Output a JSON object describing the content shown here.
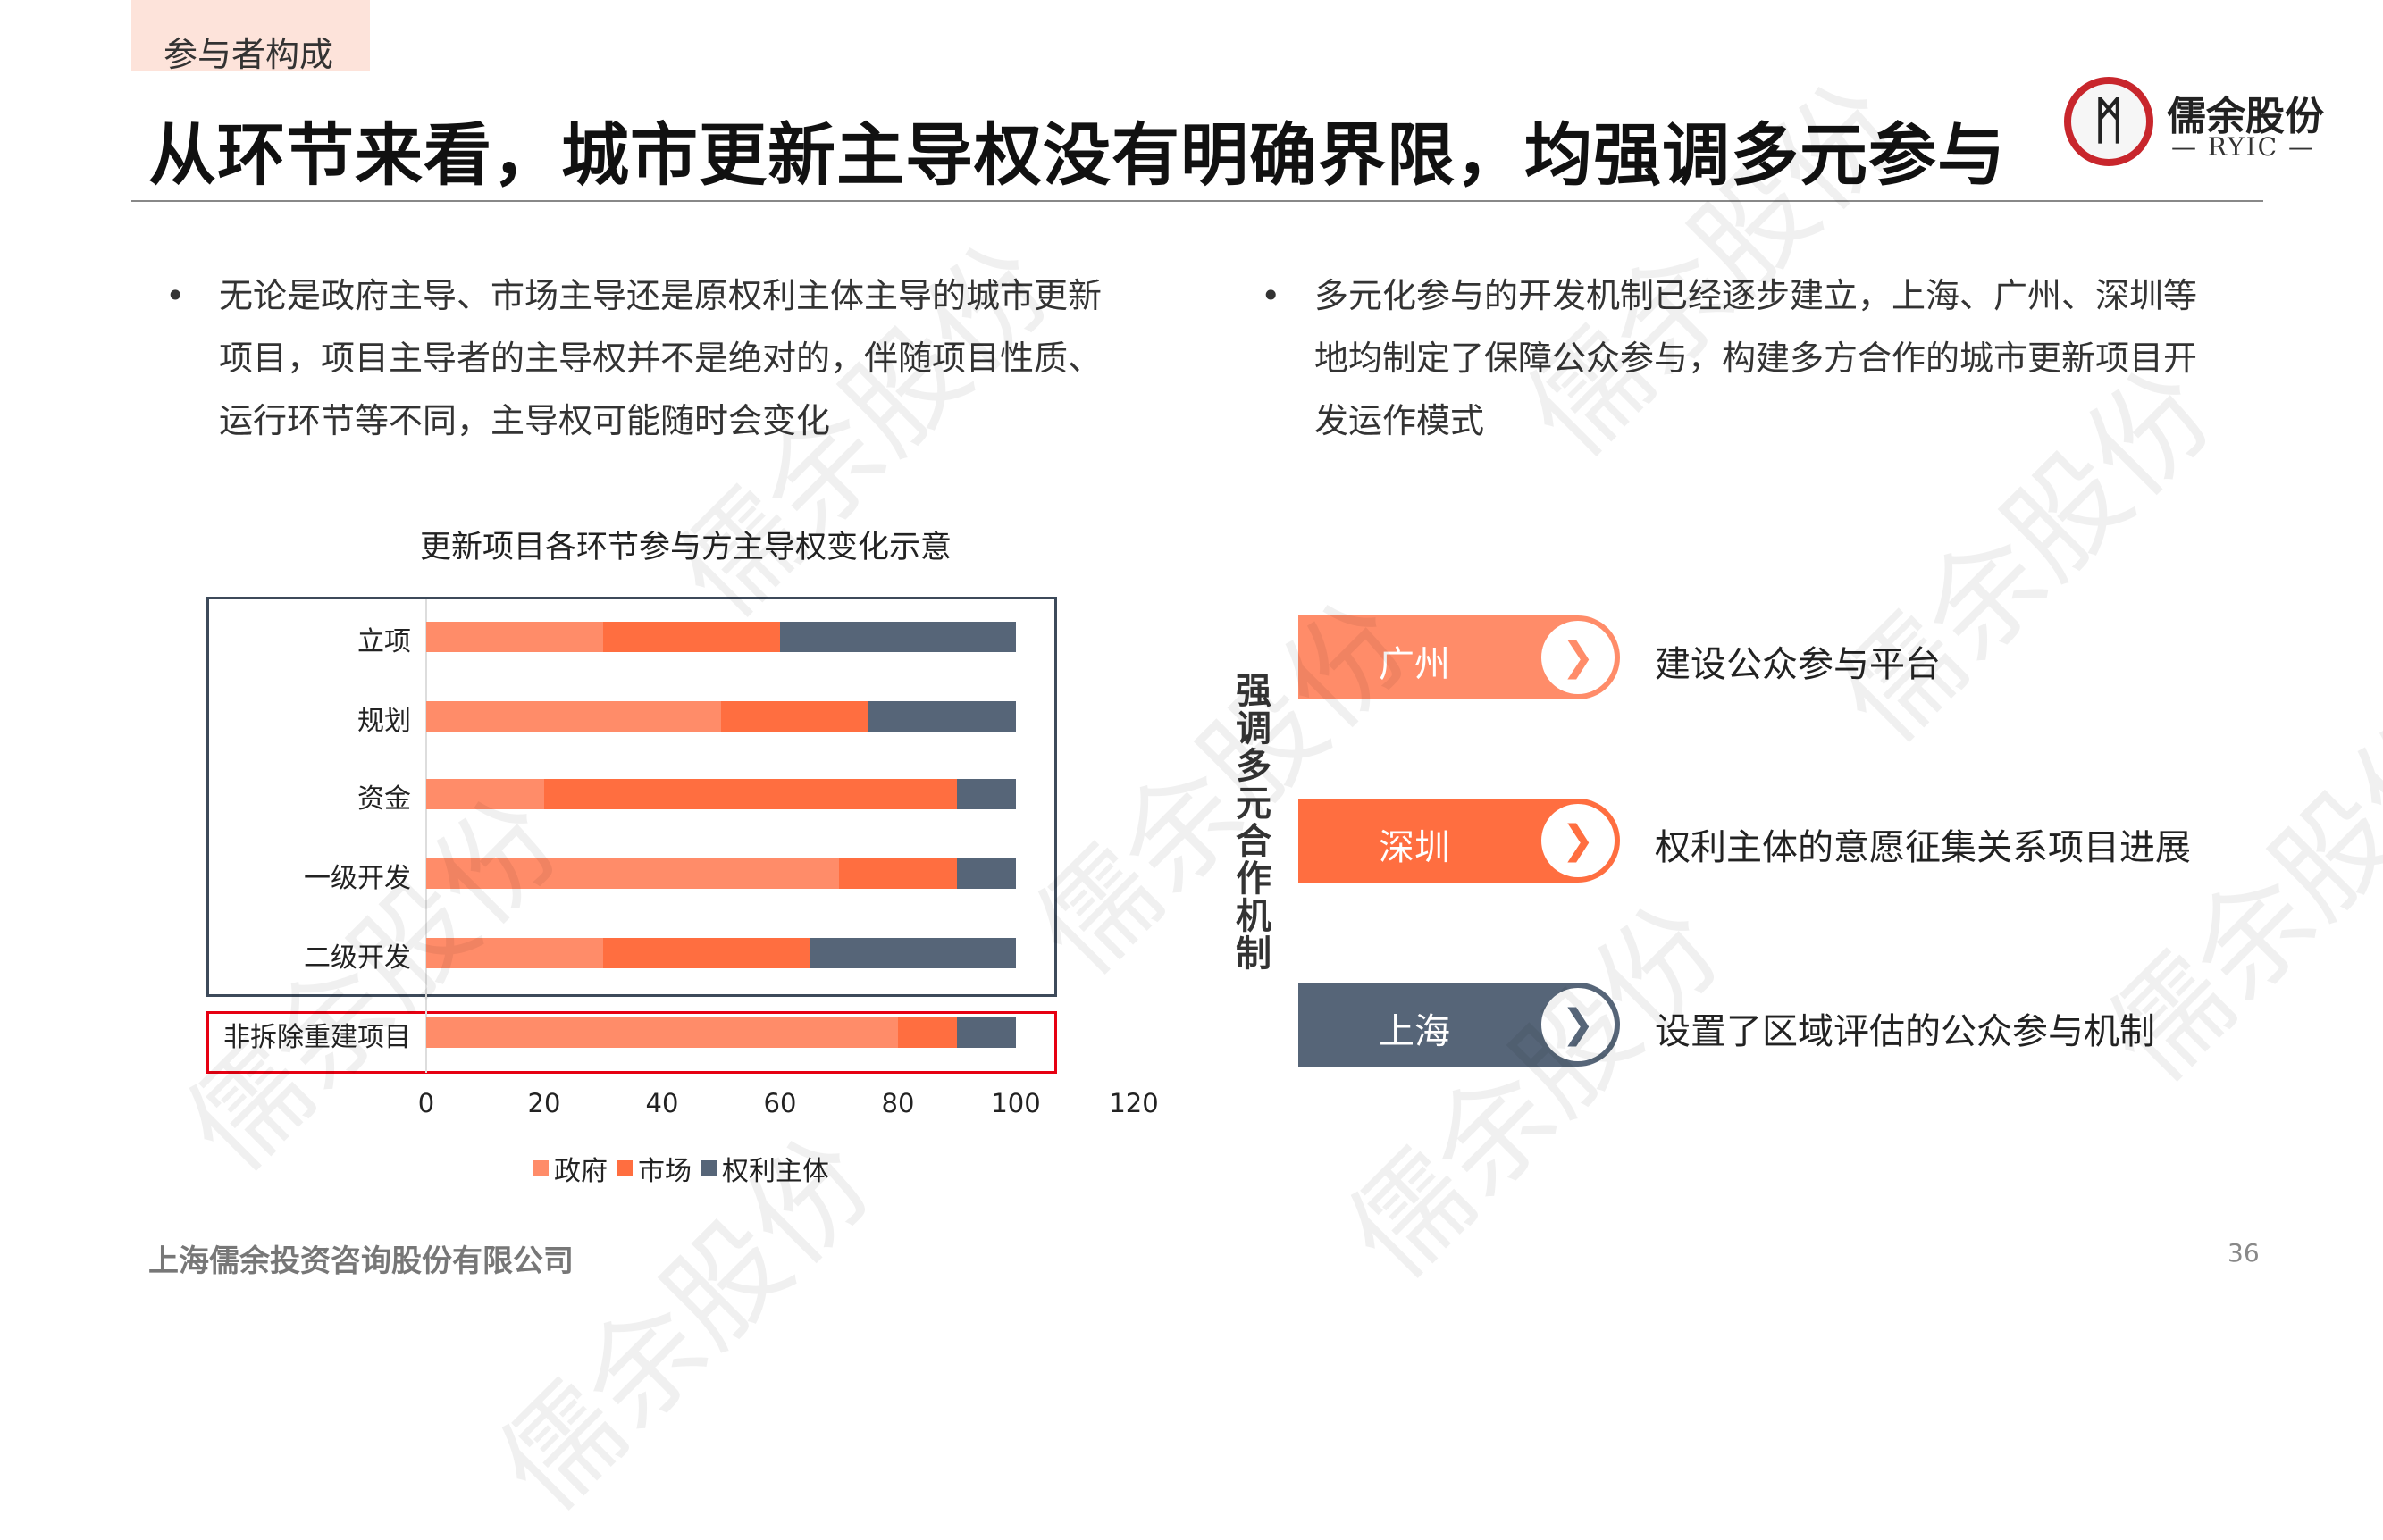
{
  "header": {
    "tag": "参与者构成",
    "title": "从环节来看，城市更新主导权没有明确界限，均强调多元参与",
    "logo_name": "儒余股份",
    "logo_sub": "— RYIC —"
  },
  "bullets": [
    {
      "dot": "•",
      "lines": [
        "无论是政府主导、市场主导还是原权利主体主导的城市更新",
        "项目，项目主导者的主导权并不是绝对的，伴随项目性质、",
        "运行环节等不同，主导权可能随时会变化"
      ]
    },
    {
      "dot": "•",
      "lines": [
        "多元化参与的开发机制已经逐步建立，上海、广州、深圳等",
        "地均制定了保障公众参与，构建多方合作的城市更新项目开",
        "发运作模式"
      ]
    }
  ],
  "chart_data": {
    "type": "bar",
    "orientation": "horizontal-stacked",
    "title": "更新项目各环节参与方主导权变化示意",
    "categories": [
      "立项",
      "规划",
      "资金",
      "一级开发",
      "二级开发",
      "非拆除重建项目"
    ],
    "series": [
      {
        "name": "政府",
        "color": "#ff8c69",
        "values": [
          30,
          50,
          20,
          70,
          30,
          80
        ]
      },
      {
        "name": "市场",
        "color": "#ff6e40",
        "values": [
          30,
          25,
          70,
          20,
          35,
          10
        ]
      },
      {
        "name": "权利主体",
        "color": "#566578",
        "values": [
          40,
          25,
          10,
          10,
          35,
          10
        ]
      }
    ],
    "xticks": [
      "0",
      "20",
      "40",
      "60",
      "80",
      "100",
      "120"
    ],
    "xlim": [
      0,
      120
    ],
    "legend": "bottom",
    "highlighted_category": "非拆除重建项目"
  },
  "mechanism": {
    "vertical_label": "强调多元合作机制",
    "items": [
      {
        "city": "广州",
        "desc": "建设公众参与平台",
        "color": "#ff8c69",
        "icon": "chevron-right-icon",
        "glyph": "❯"
      },
      {
        "city": "深圳",
        "desc": "权利主体的意愿征集关系项目进展",
        "color": "#ff6e40",
        "icon": "chevron-right-icon",
        "glyph": "❯"
      },
      {
        "city": "上海",
        "desc": "设置了区域评估的公众参与机制",
        "color": "#566578",
        "icon": "chevron-right-icon",
        "glyph": "❯"
      }
    ]
  },
  "footer": {
    "company": "上海儒余投资咨询股份有限公司",
    "page": "36"
  },
  "watermark": "儒余股份"
}
